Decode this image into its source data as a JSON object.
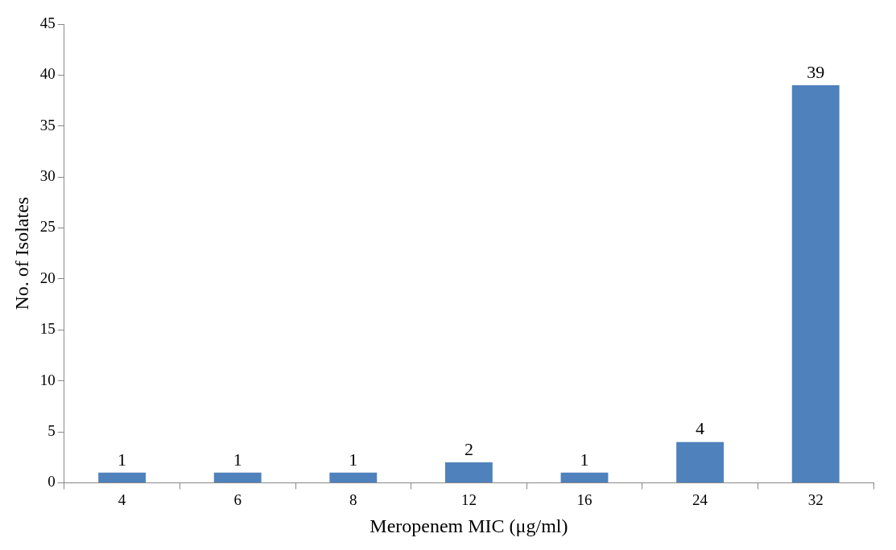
{
  "chart_data": {
    "type": "bar",
    "xlabel": "Meropenem MIC (μg/ml)",
    "ylabel": "No. of Isolates",
    "categories": [
      "4",
      "6",
      "8",
      "12",
      "16",
      "24",
      "32"
    ],
    "values": [
      1,
      1,
      1,
      2,
      1,
      4,
      39
    ],
    "color": "#4f81bd",
    "ylim": [
      0,
      45
    ],
    "yticks": [
      0,
      5,
      10,
      15,
      20,
      25,
      30,
      35,
      40,
      45
    ],
    "data_labels": true
  }
}
